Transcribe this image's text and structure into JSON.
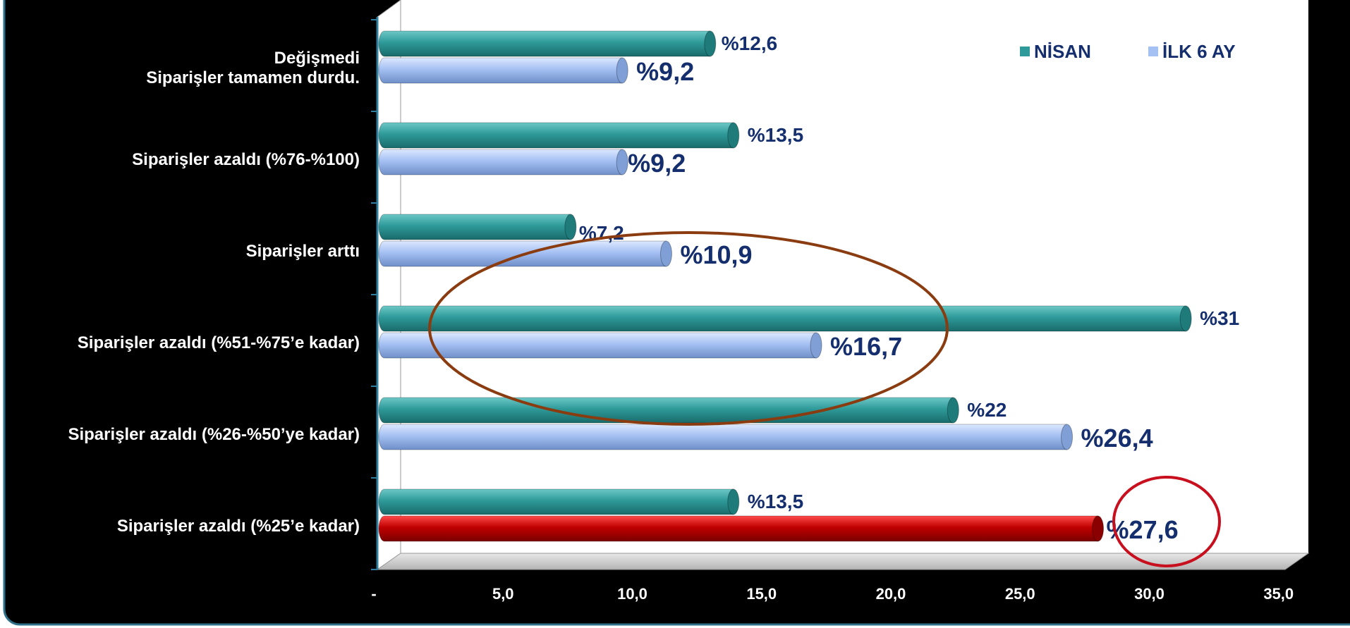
{
  "chart_data": {
    "type": "bar",
    "orientation": "horizontal",
    "categories": [
      [
        "Değişmedi",
        "Siparişler tamamen durdu."
      ],
      [
        "Siparişler azaldı (%76-%100)"
      ],
      [
        "Siparişler arttı"
      ],
      [
        "Siparişler azaldı (%51-%75’e kadar)"
      ],
      [
        "Siparişler azaldı (%26-%50’ye kadar)"
      ],
      [
        "Siparişler azaldı (%25’e kadar)"
      ]
    ],
    "series": [
      {
        "name": "NİSAN",
        "values": [
          12.6,
          13.5,
          7.2,
          31,
          22,
          13.5
        ],
        "labels": [
          "%12,6",
          "%13,5",
          "%7,2",
          "%31",
          "%22",
          "%13,5"
        ]
      },
      {
        "name": "İLK 6 AY",
        "values": [
          9.2,
          9.2,
          10.9,
          16.7,
          26.4,
          27.6
        ],
        "labels": [
          "%9,2",
          "%9,2",
          "%10,9",
          "%16,7",
          "%26,4",
          "%27,6"
        ]
      }
    ],
    "xlim": [
      0,
      35
    ],
    "x_ticks": [
      0,
      5,
      10,
      15,
      20,
      25,
      30,
      35
    ],
    "x_tick_labels": [
      "-",
      "5,0",
      "10,0",
      "15,0",
      "20,0",
      "25,0",
      "30,0",
      "35,0"
    ],
    "grid": false,
    "legend_position": "top-right",
    "highlighted_bar": {
      "category_index": 5,
      "series_index": 1,
      "color": "#c00000"
    },
    "annotations": [
      "brown ellipse around categories 2-4",
      "red circle around value %27,6"
    ]
  },
  "colors": {
    "background": "#000000",
    "plot_area": "#ffffff",
    "nisan": "#2e9a99",
    "ilk6ay": "#a5c0f3",
    "highlight": "#c00000",
    "label_text": "#142e6e",
    "ellipse": "#8a3c10",
    "circle": "#c80f1e"
  }
}
